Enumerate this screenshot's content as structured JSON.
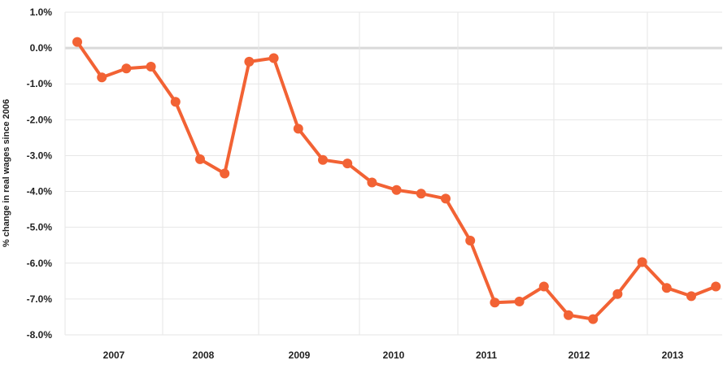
{
  "chart_data": {
    "type": "line",
    "ylabel": "% change in real wages since 2006",
    "xlabel": "",
    "ylim": [
      -8.0,
      1.0
    ],
    "y_ticks": [
      1.0,
      0.0,
      -1.0,
      -2.0,
      -3.0,
      -4.0,
      -5.0,
      -6.0,
      -7.0,
      -8.0
    ],
    "y_tick_labels": [
      "1.0%",
      "0.0%",
      "-1.0%",
      "-2.0%",
      "-3.0%",
      "-4.0%",
      "-5.0%",
      "-6.0%",
      "-7.0%",
      "-8.0%"
    ],
    "x_tick_labels": [
      "2007",
      "2008",
      "2009",
      "2010",
      "2011",
      "2012",
      "2013"
    ],
    "grid": true,
    "series": [
      {
        "color": "#f26234",
        "values": [
          0.17,
          -0.82,
          -0.57,
          -0.52,
          -1.5,
          -3.1,
          -3.5,
          -0.38,
          -0.28,
          -2.25,
          -3.12,
          -3.22,
          -3.75,
          -3.96,
          -4.06,
          -4.2,
          -5.37,
          -7.1,
          -7.07,
          -6.65,
          -7.45,
          -7.56,
          -6.86,
          -5.97,
          -6.69,
          -6.92,
          -6.65
        ]
      }
    ]
  }
}
